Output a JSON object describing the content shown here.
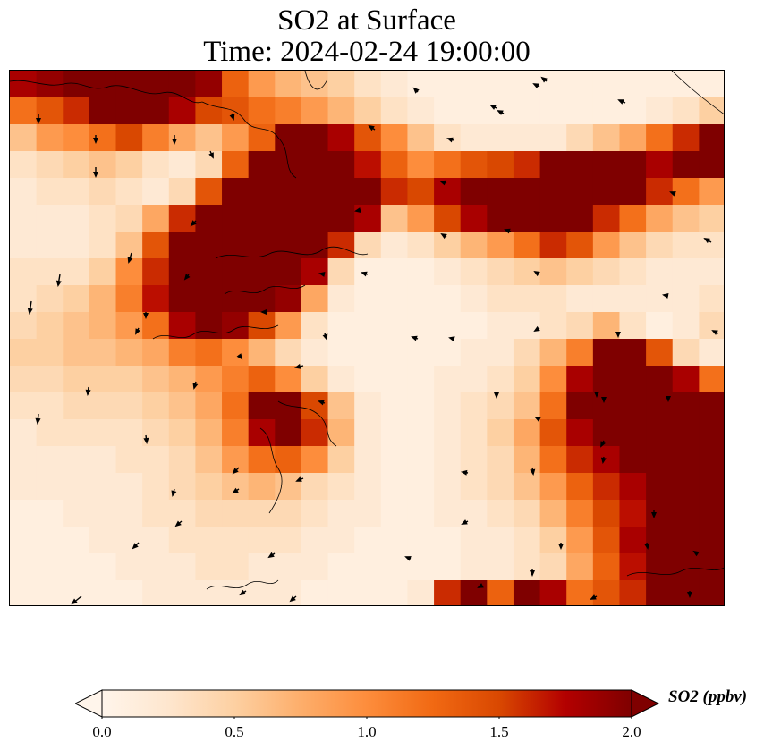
{
  "chart_data": {
    "type": "heatmap",
    "title_line1": "SO2 at Surface",
    "title_line2": "Time: 2024-02-24 19:00:00",
    "colorbar": {
      "label": "SO2 (ppbv)",
      "ticks": [
        "0.0",
        "0.5",
        "1.0",
        "1.5",
        "2.0"
      ],
      "range": [
        0.0,
        2.0
      ],
      "extend": "both",
      "colormap": "OrRd",
      "colors": [
        "#fff5eb",
        "#fee6ce",
        "#fdd0a2",
        "#fdae6b",
        "#fd8d3c",
        "#f16913",
        "#d94801",
        "#b30000",
        "#7f0000"
      ]
    },
    "field_description": "SO2 concentration grid with wind vectors and coastlines",
    "grid": {
      "rows": 20,
      "cols": 27,
      "values": [
        [
          1.8,
          1.9,
          2.0,
          2.0,
          2.0,
          2.0,
          2.0,
          1.9,
          1.3,
          0.9,
          0.7,
          0.6,
          0.5,
          0.3,
          0.2,
          0.1,
          0.1,
          0.1,
          0.1,
          0.1,
          0.1,
          0.1,
          0.1,
          0.1,
          0.1,
          0.1,
          0.1
        ],
        [
          1.2,
          1.4,
          1.6,
          2.0,
          2.0,
          2.0,
          1.8,
          1.5,
          1.4,
          1.2,
          1.1,
          0.9,
          0.7,
          0.5,
          0.3,
          0.2,
          0.1,
          0.1,
          0.1,
          0.1,
          0.1,
          0.1,
          0.1,
          0.1,
          0.2,
          0.3,
          0.5
        ],
        [
          0.6,
          0.9,
          1.0,
          1.2,
          1.5,
          1.1,
          0.8,
          0.6,
          0.9,
          1.3,
          2.0,
          2.0,
          1.8,
          1.4,
          1.0,
          0.6,
          0.3,
          0.2,
          0.2,
          0.2,
          0.2,
          0.4,
          0.6,
          0.8,
          1.2,
          1.6,
          2.0
        ],
        [
          0.3,
          0.4,
          0.5,
          0.6,
          0.5,
          0.3,
          0.2,
          0.4,
          1.3,
          2.0,
          2.0,
          2.0,
          2.0,
          1.7,
          1.3,
          1.0,
          1.2,
          1.4,
          1.5,
          1.6,
          2.0,
          2.0,
          2.0,
          2.0,
          1.8,
          2.0,
          2.0
        ],
        [
          0.2,
          0.3,
          0.3,
          0.4,
          0.3,
          0.2,
          0.4,
          1.4,
          2.0,
          2.0,
          2.0,
          2.0,
          2.0,
          2.0,
          1.6,
          1.5,
          1.8,
          2.0,
          2.0,
          2.0,
          2.0,
          2.0,
          2.0,
          2.0,
          1.6,
          1.2,
          0.9
        ],
        [
          0.2,
          0.2,
          0.2,
          0.3,
          0.4,
          0.8,
          1.6,
          2.0,
          2.0,
          2.0,
          2.0,
          2.0,
          2.0,
          1.8,
          0.6,
          0.9,
          1.5,
          1.8,
          2.0,
          2.0,
          2.0,
          2.0,
          1.6,
          1.2,
          0.8,
          0.6,
          0.5
        ],
        [
          0.2,
          0.2,
          0.2,
          0.3,
          0.6,
          1.4,
          2.0,
          2.0,
          2.0,
          2.0,
          2.0,
          2.0,
          1.6,
          0.4,
          0.2,
          0.3,
          0.5,
          0.7,
          0.9,
          1.2,
          1.6,
          1.4,
          0.9,
          0.6,
          0.4,
          0.3,
          0.3
        ],
        [
          0.3,
          0.3,
          0.3,
          0.5,
          1.0,
          1.6,
          2.0,
          2.0,
          2.0,
          2.0,
          2.0,
          1.8,
          0.4,
          0.1,
          0.1,
          0.1,
          0.2,
          0.3,
          0.4,
          0.5,
          0.6,
          0.5,
          0.4,
          0.3,
          0.2,
          0.2,
          0.2
        ],
        [
          0.3,
          0.4,
          0.5,
          0.7,
          1.1,
          1.7,
          2.0,
          2.0,
          2.0,
          2.0,
          1.9,
          0.8,
          0.2,
          0.1,
          0.1,
          0.1,
          0.1,
          0.2,
          0.3,
          0.3,
          0.3,
          0.2,
          0.2,
          0.2,
          0.2,
          0.2,
          0.3
        ],
        [
          0.4,
          0.5,
          0.6,
          0.7,
          0.9,
          1.2,
          1.8,
          2.0,
          1.9,
          1.5,
          0.9,
          0.3,
          0.1,
          0.1,
          0.1,
          0.1,
          0.1,
          0.1,
          0.2,
          0.2,
          0.3,
          0.4,
          0.7,
          0.3,
          0.1,
          0.2,
          0.4
        ],
        [
          0.5,
          0.5,
          0.6,
          0.6,
          0.7,
          0.8,
          1.1,
          1.2,
          1.0,
          0.7,
          0.4,
          0.2,
          0.1,
          0.1,
          0.1,
          0.1,
          0.1,
          0.2,
          0.2,
          0.4,
          0.7,
          1.1,
          2.0,
          2.0,
          1.4,
          0.4,
          0.2
        ],
        [
          0.4,
          0.4,
          0.5,
          0.5,
          0.5,
          0.6,
          0.7,
          0.9,
          1.1,
          1.3,
          1.0,
          0.5,
          0.2,
          0.1,
          0.1,
          0.1,
          0.2,
          0.2,
          0.3,
          0.5,
          1.0,
          1.8,
          2.0,
          2.0,
          2.0,
          1.8,
          1.2
        ],
        [
          0.3,
          0.3,
          0.4,
          0.4,
          0.4,
          0.5,
          0.6,
          0.8,
          1.2,
          2.0,
          2.0,
          1.5,
          0.6,
          0.2,
          0.1,
          0.1,
          0.2,
          0.3,
          0.4,
          0.6,
          1.2,
          2.0,
          2.0,
          2.0,
          2.0,
          2.0,
          2.0
        ],
        [
          0.2,
          0.3,
          0.3,
          0.3,
          0.3,
          0.4,
          0.5,
          0.7,
          1.1,
          1.8,
          2.0,
          1.6,
          0.7,
          0.2,
          0.1,
          0.1,
          0.2,
          0.3,
          0.5,
          0.8,
          1.4,
          1.8,
          2.0,
          2.0,
          2.0,
          2.0,
          2.0
        ],
        [
          0.2,
          0.2,
          0.2,
          0.2,
          0.3,
          0.3,
          0.4,
          0.6,
          0.9,
          1.2,
          1.3,
          1.0,
          0.5,
          0.2,
          0.1,
          0.1,
          0.2,
          0.3,
          0.4,
          0.7,
          1.2,
          1.6,
          1.8,
          2.0,
          2.0,
          2.0,
          2.0
        ],
        [
          0.2,
          0.2,
          0.2,
          0.2,
          0.2,
          0.3,
          0.4,
          0.5,
          0.6,
          0.7,
          0.6,
          0.4,
          0.3,
          0.2,
          0.1,
          0.1,
          0.2,
          0.3,
          0.4,
          0.6,
          0.9,
          1.3,
          1.6,
          1.8,
          2.0,
          2.0,
          2.0
        ],
        [
          0.1,
          0.1,
          0.2,
          0.2,
          0.2,
          0.3,
          0.3,
          0.4,
          0.4,
          0.4,
          0.4,
          0.3,
          0.2,
          0.2,
          0.1,
          0.1,
          0.2,
          0.2,
          0.3,
          0.4,
          0.7,
          1.1,
          1.5,
          1.7,
          2.0,
          2.0,
          2.0
        ],
        [
          0.1,
          0.1,
          0.1,
          0.2,
          0.2,
          0.2,
          0.3,
          0.3,
          0.3,
          0.3,
          0.3,
          0.2,
          0.2,
          0.1,
          0.1,
          0.1,
          0.1,
          0.2,
          0.2,
          0.3,
          0.5,
          0.9,
          1.4,
          1.8,
          2.0,
          2.0,
          2.0
        ],
        [
          0.1,
          0.1,
          0.1,
          0.1,
          0.2,
          0.2,
          0.2,
          0.3,
          0.3,
          0.2,
          0.2,
          0.2,
          0.1,
          0.1,
          0.1,
          0.1,
          0.1,
          0.2,
          0.2,
          0.3,
          0.4,
          0.8,
          1.3,
          1.7,
          2.0,
          2.0,
          2.0
        ],
        [
          0.1,
          0.1,
          0.1,
          0.1,
          0.1,
          0.2,
          0.2,
          0.2,
          0.2,
          0.2,
          0.2,
          0.1,
          0.1,
          0.1,
          0.1,
          0.2,
          1.6,
          2.0,
          1.3,
          2.0,
          1.8,
          1.2,
          1.4,
          1.6,
          2.0,
          2.0,
          2.0
        ]
      ]
    },
    "wind_vectors": [
      {
        "lon": 0.04,
        "lat": 0.92,
        "u": 0.0,
        "v": -1.0
      },
      {
        "lon": 0.12,
        "lat": 0.88,
        "u": 0.0,
        "v": -0.8
      },
      {
        "lon": 0.23,
        "lat": 0.88,
        "u": 0.0,
        "v": -0.9
      },
      {
        "lon": 0.31,
        "lat": 0.92,
        "u": 0.2,
        "v": -0.6
      },
      {
        "lon": 0.12,
        "lat": 0.82,
        "u": 0.0,
        "v": -1.0
      },
      {
        "lon": 0.28,
        "lat": 0.85,
        "u": 0.3,
        "v": -0.7
      },
      {
        "lon": 0.26,
        "lat": 0.72,
        "u": -0.5,
        "v": -0.5
      },
      {
        "lon": 0.17,
        "lat": 0.66,
        "u": -0.3,
        "v": -1.0
      },
      {
        "lon": 0.07,
        "lat": 0.62,
        "u": -0.2,
        "v": -1.2
      },
      {
        "lon": 0.03,
        "lat": 0.57,
        "u": -0.2,
        "v": -1.3
      },
      {
        "lon": 0.19,
        "lat": 0.55,
        "u": 0.0,
        "v": -0.6
      },
      {
        "lon": 0.18,
        "lat": 0.52,
        "u": -0.3,
        "v": -0.6
      },
      {
        "lon": 0.32,
        "lat": 0.47,
        "u": 0.3,
        "v": -0.4
      },
      {
        "lon": 0.26,
        "lat": 0.42,
        "u": -0.2,
        "v": -0.7
      },
      {
        "lon": 0.11,
        "lat": 0.41,
        "u": -0.1,
        "v": -0.8
      },
      {
        "lon": 0.04,
        "lat": 0.36,
        "u": -0.1,
        "v": -1.0
      },
      {
        "lon": 0.19,
        "lat": 0.32,
        "u": 0.1,
        "v": -0.8
      },
      {
        "lon": 0.23,
        "lat": 0.22,
        "u": -0.2,
        "v": -0.7
      },
      {
        "lon": 0.24,
        "lat": 0.16,
        "u": -0.6,
        "v": -0.5
      },
      {
        "lon": 0.18,
        "lat": 0.12,
        "u": -0.6,
        "v": -0.6
      },
      {
        "lon": 0.1,
        "lat": 0.02,
        "u": -1.0,
        "v": -0.8
      },
      {
        "lon": 0.32,
        "lat": 0.22,
        "u": -0.6,
        "v": -0.4
      },
      {
        "lon": 0.41,
        "lat": 0.24,
        "u": -0.7,
        "v": -0.3
      },
      {
        "lon": 0.44,
        "lat": 0.38,
        "u": -0.6,
        "v": 0.2
      },
      {
        "lon": 0.41,
        "lat": 0.45,
        "u": -0.8,
        "v": -0.2
      },
      {
        "lon": 0.32,
        "lat": 0.26,
        "u": -0.6,
        "v": -0.6
      },
      {
        "lon": 0.44,
        "lat": 0.51,
        "u": 0.2,
        "v": -0.6
      },
      {
        "lon": 0.56,
        "lat": 0.09,
        "u": -0.5,
        "v": 0.2
      },
      {
        "lon": 0.64,
        "lat": 0.16,
        "u": -0.6,
        "v": -0.3
      },
      {
        "lon": 0.64,
        "lat": 0.25,
        "u": -0.6,
        "v": 0.1
      },
      {
        "lon": 0.73,
        "lat": 0.26,
        "u": 0.1,
        "v": -0.7
      },
      {
        "lon": 0.74,
        "lat": 0.35,
        "u": -0.4,
        "v": 0.2
      },
      {
        "lon": 0.68,
        "lat": 0.4,
        "u": 0.0,
        "v": -0.5
      },
      {
        "lon": 0.83,
        "lat": 0.31,
        "u": -0.3,
        "v": -0.6
      },
      {
        "lon": 0.82,
        "lat": 0.4,
        "u": 0.0,
        "v": -0.4
      },
      {
        "lon": 0.74,
        "lat": 0.52,
        "u": -0.5,
        "v": -0.3
      },
      {
        "lon": 0.62,
        "lat": 0.5,
        "u": -0.4,
        "v": 0.1
      },
      {
        "lon": 0.57,
        "lat": 0.5,
        "u": -0.6,
        "v": 0.2
      },
      {
        "lon": 0.44,
        "lat": 0.62,
        "u": -0.5,
        "v": 0.1
      },
      {
        "lon": 0.49,
        "lat": 0.74,
        "u": -0.5,
        "v": -0.1
      },
      {
        "lon": 0.5,
        "lat": 0.62,
        "u": -0.6,
        "v": 0.2
      },
      {
        "lon": 0.61,
        "lat": 0.69,
        "u": -0.5,
        "v": 0.3
      },
      {
        "lon": 0.7,
        "lat": 0.7,
        "u": -0.6,
        "v": 0.2
      },
      {
        "lon": 0.74,
        "lat": 0.62,
        "u": -0.5,
        "v": 0.3
      },
      {
        "lon": 0.51,
        "lat": 0.89,
        "u": -0.6,
        "v": 0.4
      },
      {
        "lon": 0.62,
        "lat": 0.87,
        "u": -0.6,
        "v": 0.2
      },
      {
        "lon": 0.57,
        "lat": 0.96,
        "u": -0.4,
        "v": 0.4
      },
      {
        "lon": 0.69,
        "lat": 0.92,
        "u": -0.6,
        "v": 0.3
      },
      {
        "lon": 0.75,
        "lat": 0.98,
        "u": -0.5,
        "v": 0.4
      },
      {
        "lon": 0.86,
        "lat": 0.94,
        "u": -0.7,
        "v": 0.3
      },
      {
        "lon": 0.93,
        "lat": 0.77,
        "u": -0.5,
        "v": 0.2
      },
      {
        "lon": 0.98,
        "lat": 0.68,
        "u": -0.7,
        "v": 0.4
      },
      {
        "lon": 0.99,
        "lat": 0.51,
        "u": -0.6,
        "v": 0.3
      },
      {
        "lon": 0.92,
        "lat": 0.58,
        "u": -0.5,
        "v": 0.1
      },
      {
        "lon": 0.85,
        "lat": 0.51,
        "u": 0.0,
        "v": -0.3
      },
      {
        "lon": 0.83,
        "lat": 0.39,
        "u": 0.0,
        "v": -0.4
      },
      {
        "lon": 0.92,
        "lat": 0.39,
        "u": 0.0,
        "v": -0.3
      },
      {
        "lon": 0.83,
        "lat": 0.28,
        "u": -0.1,
        "v": -0.6
      },
      {
        "lon": 0.9,
        "lat": 0.18,
        "u": 0.0,
        "v": -0.7
      },
      {
        "lon": 0.89,
        "lat": 0.12,
        "u": 0.1,
        "v": -0.6
      },
      {
        "lon": 0.77,
        "lat": 0.12,
        "u": 0.0,
        "v": -0.6
      },
      {
        "lon": 0.73,
        "lat": 0.07,
        "u": 0.0,
        "v": -0.6
      },
      {
        "lon": 0.66,
        "lat": 0.04,
        "u": -0.4,
        "v": -0.2
      },
      {
        "lon": 0.82,
        "lat": 0.02,
        "u": -0.6,
        "v": -0.3
      },
      {
        "lon": 0.95,
        "lat": 0.03,
        "u": 0.0,
        "v": -0.6
      },
      {
        "lon": 0.96,
        "lat": 0.1,
        "u": -0.3,
        "v": 0.2
      },
      {
        "lon": 0.4,
        "lat": 0.02,
        "u": -0.6,
        "v": -0.5
      },
      {
        "lon": 0.37,
        "lat": 0.1,
        "u": -0.6,
        "v": -0.4
      },
      {
        "lon": 0.33,
        "lat": 0.03,
        "u": -0.6,
        "v": -0.4
      },
      {
        "lon": 0.36,
        "lat": 0.55,
        "u": -0.6,
        "v": 0.0
      },
      {
        "lon": 0.25,
        "lat": 0.62,
        "u": -0.4,
        "v": -0.5
      },
      {
        "lon": 0.61,
        "lat": 0.79,
        "u": -0.6,
        "v": 0.2
      },
      {
        "lon": 0.68,
        "lat": 0.93,
        "u": -0.6,
        "v": 0.3
      },
      {
        "lon": 0.74,
        "lat": 0.97,
        "u": -0.6,
        "v": 0.3
      }
    ]
  }
}
